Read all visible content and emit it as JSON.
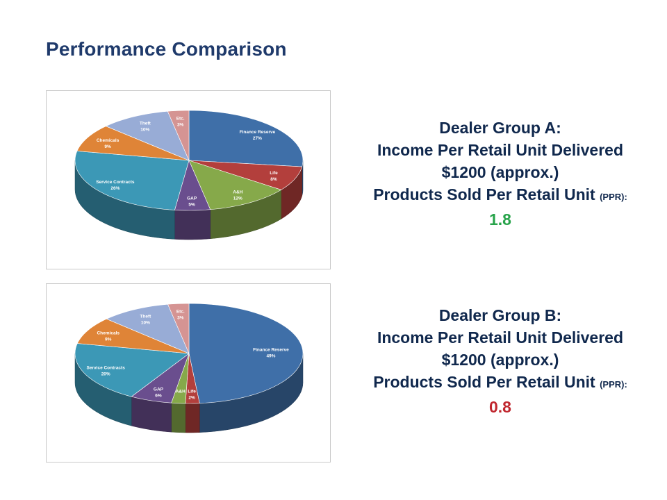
{
  "title": "Performance Comparison",
  "chart_data": [
    {
      "type": "pie",
      "categories": [
        "Finance Reserve",
        "Life",
        "A&H",
        "GAP",
        "Service Contracts",
        "Chemicals",
        "Theft",
        "Etc."
      ],
      "values": [
        27,
        8,
        12,
        5,
        26,
        9,
        10,
        3
      ],
      "value_labels": [
        "27%",
        "8%",
        "12%",
        "5%",
        "26%",
        "9%",
        "10%",
        "3%"
      ],
      "colors": [
        "#3f6fa8",
        "#b33f3c",
        "#86a94a",
        "#6a4e8e",
        "#3c98b6",
        "#df8437",
        "#98acd6",
        "#d59493"
      ]
    },
    {
      "type": "pie",
      "categories": [
        "Finance Reserve",
        "Life",
        "A&H",
        "GAP",
        "Service Contracts",
        "Chemicals",
        "Theft",
        "Etc."
      ],
      "values": [
        49,
        2,
        2,
        6,
        20,
        9,
        10,
        3
      ],
      "value_labels": [
        "49%",
        "2%",
        "",
        "6%",
        "20%",
        "9%",
        "10%",
        "3%"
      ],
      "colors": [
        "#3f6fa8",
        "#b33f3c",
        "#86a94a",
        "#6a4e8e",
        "#3c98b6",
        "#df8437",
        "#98acd6",
        "#d59493"
      ]
    }
  ],
  "group_a": {
    "heading": "Dealer Group A:",
    "income_label": "Income Per Retail Unit Delivered",
    "income_value": "$1200 (approx.)",
    "ppr_label": "Products Sold Per Retail Unit",
    "ppr_abbrev": "(PPR):",
    "ppr_value": "1.8",
    "ppr_color": "#27a34a"
  },
  "group_b": {
    "heading": "Dealer Group B:",
    "income_label": "Income Per Retail Unit Delivered",
    "income_value": "$1200 (approx.)",
    "ppr_label": "Products Sold Per Retail Unit",
    "ppr_abbrev": "(PPR):",
    "ppr_value": "0.8",
    "ppr_color": "#c0262e"
  }
}
